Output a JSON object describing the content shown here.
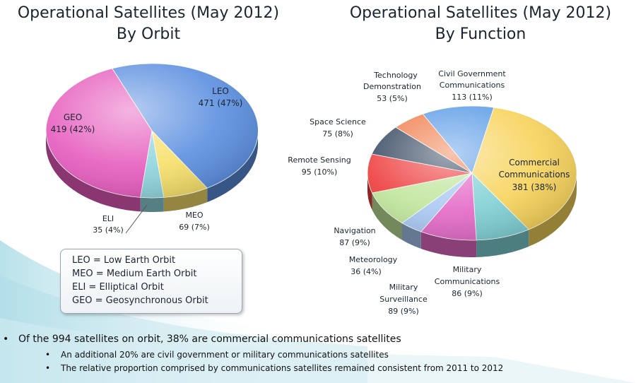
{
  "charts_titles": {
    "left": [
      "Operational Satellites (May 2012)",
      "By Orbit"
    ],
    "right": [
      "Operational Satellites (May 2012)",
      "By Function"
    ]
  },
  "chart_data": [
    {
      "type": "pie",
      "title": "Operational Satellites (May 2012) By Orbit",
      "slices": [
        {
          "name": "LEO",
          "value": 471,
          "percent": "47%",
          "label": "471 (47%)",
          "color": "#5b8fe0"
        },
        {
          "name": "MEO",
          "value": 69,
          "percent": "7%",
          "label": "69 (7%)",
          "color": "#f7e06a"
        },
        {
          "name": "ELI",
          "value": 35,
          "percent": "4%",
          "label": "35 (4%)",
          "color": "#8fd4dc"
        },
        {
          "name": "GEO",
          "value": 419,
          "percent": "42%",
          "label": "419 (42%)",
          "color": "#e65bbd"
        }
      ]
    },
    {
      "type": "pie",
      "title": "Operational Satellites (May 2012) By Function",
      "slices": [
        {
          "name": "Commercial Communications",
          "value": 381,
          "percent": "38%",
          "label": "381 (38%)",
          "color": "#f7d35a"
        },
        {
          "name": "Military Communications",
          "value": 86,
          "percent": "9%",
          "label": "86 (9%)",
          "color": "#7fd0d4"
        },
        {
          "name": "Military Surveillance",
          "value": 89,
          "percent": "9%",
          "label": "89 (9%)",
          "color": "#e46ac7"
        },
        {
          "name": "Meteorology",
          "value": 36,
          "percent": "4%",
          "label": "36 (4%)",
          "color": "#a9c8f2"
        },
        {
          "name": "Navigation",
          "value": 87,
          "percent": "9%",
          "label": "87 (9%)",
          "color": "#bfe59a"
        },
        {
          "name": "Remote Sensing",
          "value": 95,
          "percent": "10%",
          "label": "95 (10%)",
          "color": "#ee3c3c"
        },
        {
          "name": "Space Science",
          "value": 75,
          "percent": "8%",
          "label": "75 (8%)",
          "color": "#33455e"
        },
        {
          "name": "Technology Demonstration",
          "value": 53,
          "percent": "5%",
          "label": "53 (5%)",
          "color": "#f07c4a"
        },
        {
          "name": "Civil Government Communications",
          "value": 113,
          "percent": "11%",
          "label": "113 (11%)",
          "color": "#5a9be6"
        }
      ]
    }
  ],
  "labels": {
    "leo": [
      "LEO",
      "471 (47%)"
    ],
    "geo": [
      "GEO",
      "419 (42%)"
    ],
    "eli": [
      "ELI",
      "35 (4%)"
    ],
    "meo": [
      "MEO",
      "69 (7%)"
    ],
    "tech": [
      "Technology",
      "Demonstration",
      "53 (5%)"
    ],
    "civil": [
      "Civil Government",
      "Communications",
      "113 (11%)"
    ],
    "space": [
      "Space Science",
      "75 (8%)"
    ],
    "remote": [
      "Remote Sensing",
      "95 (10%)"
    ],
    "commercial": [
      "Commercial",
      "Communications",
      "381 (38%)"
    ],
    "navigation": [
      "Navigation",
      "87 (9%)"
    ],
    "meteorology": [
      "Meteorology",
      "36 (4%)"
    ],
    "milcomm": [
      "Military",
      "Communications",
      "86 (9%)"
    ],
    "milsurv": [
      "Military",
      "Surveillance",
      "89 (9%)"
    ]
  },
  "legend": [
    "LEO = Low Earth Orbit",
    "MEO = Medium Earth Orbit",
    "ELI  = Elliptical Orbit",
    "GEO = Geosynchronous Orbit"
  ],
  "bullets": {
    "main": "Of the 994 satellites on orbit, 38% are commercial communications satellites",
    "sub1": "An additional 20% are civil government or military communications satellites",
    "sub2": "The relative proportion comprised by communications satellites remained consistent from 2011 to 2012",
    "marker": "•"
  }
}
